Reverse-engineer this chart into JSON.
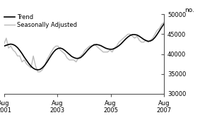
{
  "title": "",
  "ylabel": "no.",
  "ylim": [
    30000,
    50000
  ],
  "yticks": [
    30000,
    35000,
    40000,
    45000,
    50000
  ],
  "xtick_positions": [
    0,
    2,
    4,
    6
  ],
  "xtick_labels": [
    "Aug\n2001",
    "Aug\n2003",
    "Aug\n2005",
    "Aug\n2007"
  ],
  "legend_entries": [
    "Trend",
    "Seasonally Adjusted"
  ],
  "trend_color": "#000000",
  "seasonal_color": "#bbbbbb",
  "background_color": "#ffffff",
  "trend_linewidth": 1.2,
  "seasonal_linewidth": 1.0,
  "trend_data": [
    42000,
    42200,
    42400,
    42500,
    42400,
    42100,
    41600,
    40900,
    40100,
    39200,
    38400,
    37600,
    36900,
    36400,
    36100,
    36000,
    36100,
    36500,
    37100,
    37900,
    38800,
    39700,
    40500,
    41100,
    41400,
    41500,
    41300,
    40900,
    40400,
    39900,
    39400,
    39100,
    38900,
    38900,
    39100,
    39600,
    40200,
    40900,
    41500,
    42000,
    42300,
    42400,
    42300,
    42100,
    41800,
    41500,
    41300,
    41200,
    41200,
    41400,
    41700,
    42100,
    42600,
    43200,
    43800,
    44300,
    44700,
    44900,
    44900,
    44800,
    44500,
    44100,
    43700,
    43400,
    43200,
    43300,
    43600,
    44200,
    45000,
    45900,
    46800,
    47600
  ],
  "seasonal_data": [
    42500,
    44000,
    41500,
    42000,
    41000,
    40500,
    39500,
    39500,
    38000,
    38500,
    37500,
    37000,
    36500,
    39500,
    37000,
    35500,
    35500,
    36000,
    37000,
    38500,
    39500,
    40500,
    41500,
    42000,
    42000,
    41000,
    40500,
    40000,
    39000,
    38500,
    38500,
    38500,
    38000,
    39000,
    39500,
    40000,
    41000,
    41500,
    42000,
    42000,
    42500,
    42000,
    41500,
    41000,
    40500,
    40500,
    40500,
    41000,
    40500,
    41500,
    42000,
    43000,
    43500,
    44000,
    44500,
    45000,
    45000,
    44500,
    44000,
    44500,
    43500,
    43000,
    43000,
    43500,
    43000,
    43500,
    44000,
    45000,
    46000,
    46500,
    47500,
    48000
  ]
}
